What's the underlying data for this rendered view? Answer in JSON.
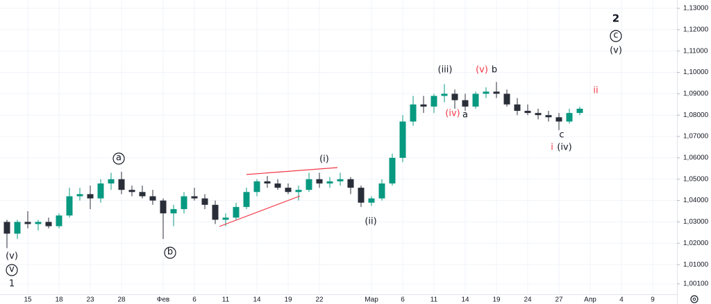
{
  "chart_data": {
    "type": "candlestick",
    "categories": [
      null,
      null,
      "15",
      null,
      null,
      "18",
      null,
      null,
      "23",
      null,
      null,
      "28",
      null,
      null,
      null,
      "Фев",
      null,
      null,
      "6",
      null,
      null,
      "11",
      null,
      null,
      "14",
      null,
      null,
      "19",
      null,
      null,
      "22",
      null,
      null,
      null,
      null,
      "Мар",
      null,
      null,
      "6",
      null,
      null,
      "11",
      null,
      null,
      "14",
      null,
      null,
      "19",
      null,
      null,
      "24",
      null,
      null,
      "27",
      null,
      null,
      "Апр",
      null,
      null,
      "4",
      null,
      null,
      "9",
      null
    ],
    "open": [
      1.03,
      1.0245,
      1.03,
      1.029,
      1.03,
      1.028,
      1.033,
      1.042,
      1.043,
      1.041,
      1.048,
      1.05,
      1.045,
      1.044,
      1.042,
      1.04,
      1.034,
      1.036,
      1.042,
      1.041,
      1.038,
      1.031,
      1.032,
      1.037,
      1.044,
      1.049,
      1.048,
      1.046,
      1.044,
      1.045,
      1.05,
      1.048,
      1.049,
      1.05,
      1.046,
      1.039,
      1.041,
      1.048,
      1.06,
      1.077,
      1.085,
      1.084,
      1.089,
      1.09,
      1.087,
      1.084,
      1.09,
      1.091,
      1.09,
      1.085,
      1.082,
      1.081,
      1.08,
      1.079,
      1.077,
      1.081,
      null,
      null,
      null,
      null,
      null,
      null,
      null,
      null
    ],
    "high": [
      1.031,
      1.031,
      1.035,
      1.031,
      1.032,
      1.034,
      1.046,
      1.046,
      1.047,
      1.05,
      1.053,
      1.0535,
      1.047,
      1.047,
      1.045,
      1.041,
      1.038,
      1.044,
      1.046,
      1.043,
      1.04,
      1.034,
      1.039,
      1.046,
      1.05,
      1.0515,
      1.05,
      1.048,
      1.047,
      1.053,
      1.053,
      1.051,
      1.053,
      1.051,
      1.047,
      1.042,
      1.05,
      1.062,
      1.08,
      1.089,
      1.089,
      1.09,
      1.0945,
      1.092,
      1.09,
      1.091,
      1.093,
      1.0955,
      1.092,
      1.088,
      1.085,
      1.083,
      1.082,
      1.081,
      1.083,
      1.084,
      null,
      null,
      null,
      null,
      null,
      null,
      null,
      null
    ],
    "low": [
      1.0177,
      1.022,
      1.027,
      1.026,
      1.027,
      1.027,
      1.032,
      1.04,
      1.036,
      1.039,
      1.045,
      1.043,
      1.042,
      1.041,
      1.038,
      1.022,
      1.028,
      1.034,
      1.04,
      1.036,
      1.029,
      1.028,
      1.031,
      1.036,
      1.042,
      1.046,
      1.045,
      1.043,
      1.04,
      1.044,
      1.046,
      1.046,
      1.047,
      1.043,
      1.037,
      1.0375,
      1.04,
      1.047,
      1.058,
      1.075,
      1.081,
      1.081,
      1.086,
      1.083,
      1.082,
      1.083,
      1.088,
      1.088,
      1.084,
      1.08,
      1.08,
      1.078,
      1.077,
      1.073,
      1.076,
      1.08,
      null,
      null,
      null,
      null,
      null,
      null,
      null,
      null
    ],
    "close": [
      1.0245,
      1.03,
      1.029,
      1.03,
      1.028,
      1.033,
      1.042,
      1.043,
      1.041,
      1.048,
      1.05,
      1.045,
      1.044,
      1.042,
      1.04,
      1.034,
      1.036,
      1.042,
      1.041,
      1.038,
      1.031,
      1.032,
      1.037,
      1.044,
      1.049,
      1.048,
      1.046,
      1.044,
      1.045,
      1.05,
      1.048,
      1.049,
      1.05,
      1.046,
      1.039,
      1.041,
      1.048,
      1.06,
      1.077,
      1.085,
      1.084,
      1.089,
      1.09,
      1.087,
      1.084,
      1.09,
      1.091,
      1.09,
      1.085,
      1.082,
      1.081,
      1.08,
      1.079,
      1.077,
      1.081,
      1.083,
      null,
      null,
      null,
      null,
      null,
      null,
      null,
      null
    ],
    "up_color": "#089981",
    "down_color": "#2a2e39",
    "ylim": [
      0.9961,
      1.1339
    ],
    "yticks": [
      {
        "value": 1.001,
        "label": "1,00100"
      },
      {
        "value": 1.01,
        "label": "1,01000"
      },
      {
        "value": 1.02,
        "label": "1,02000"
      },
      {
        "value": 1.03,
        "label": "1,03000"
      },
      {
        "value": 1.04,
        "label": "1,04000"
      },
      {
        "value": 1.05,
        "label": "1,05000"
      },
      {
        "value": 1.06,
        "label": "1,06000"
      },
      {
        "value": 1.07,
        "label": "1,07000"
      },
      {
        "value": 1.08,
        "label": "1,08000"
      },
      {
        "value": 1.09,
        "label": "1,09000"
      },
      {
        "value": 1.1,
        "label": "1,10000"
      },
      {
        "value": 1.11,
        "label": "1,11000"
      },
      {
        "value": 1.12,
        "label": "1,12000"
      },
      {
        "value": 1.13,
        "label": "1,13000"
      }
    ],
    "grid": true,
    "annotations": [
      "(v)",
      "v",
      "1",
      "a",
      "b",
      "(i)",
      "(ii)",
      "(iii)",
      "(v)",
      "b",
      "(iv)",
      "a",
      "c",
      "i",
      "(iv)",
      "2",
      "c",
      "(v)",
      "ii"
    ]
  }
}
